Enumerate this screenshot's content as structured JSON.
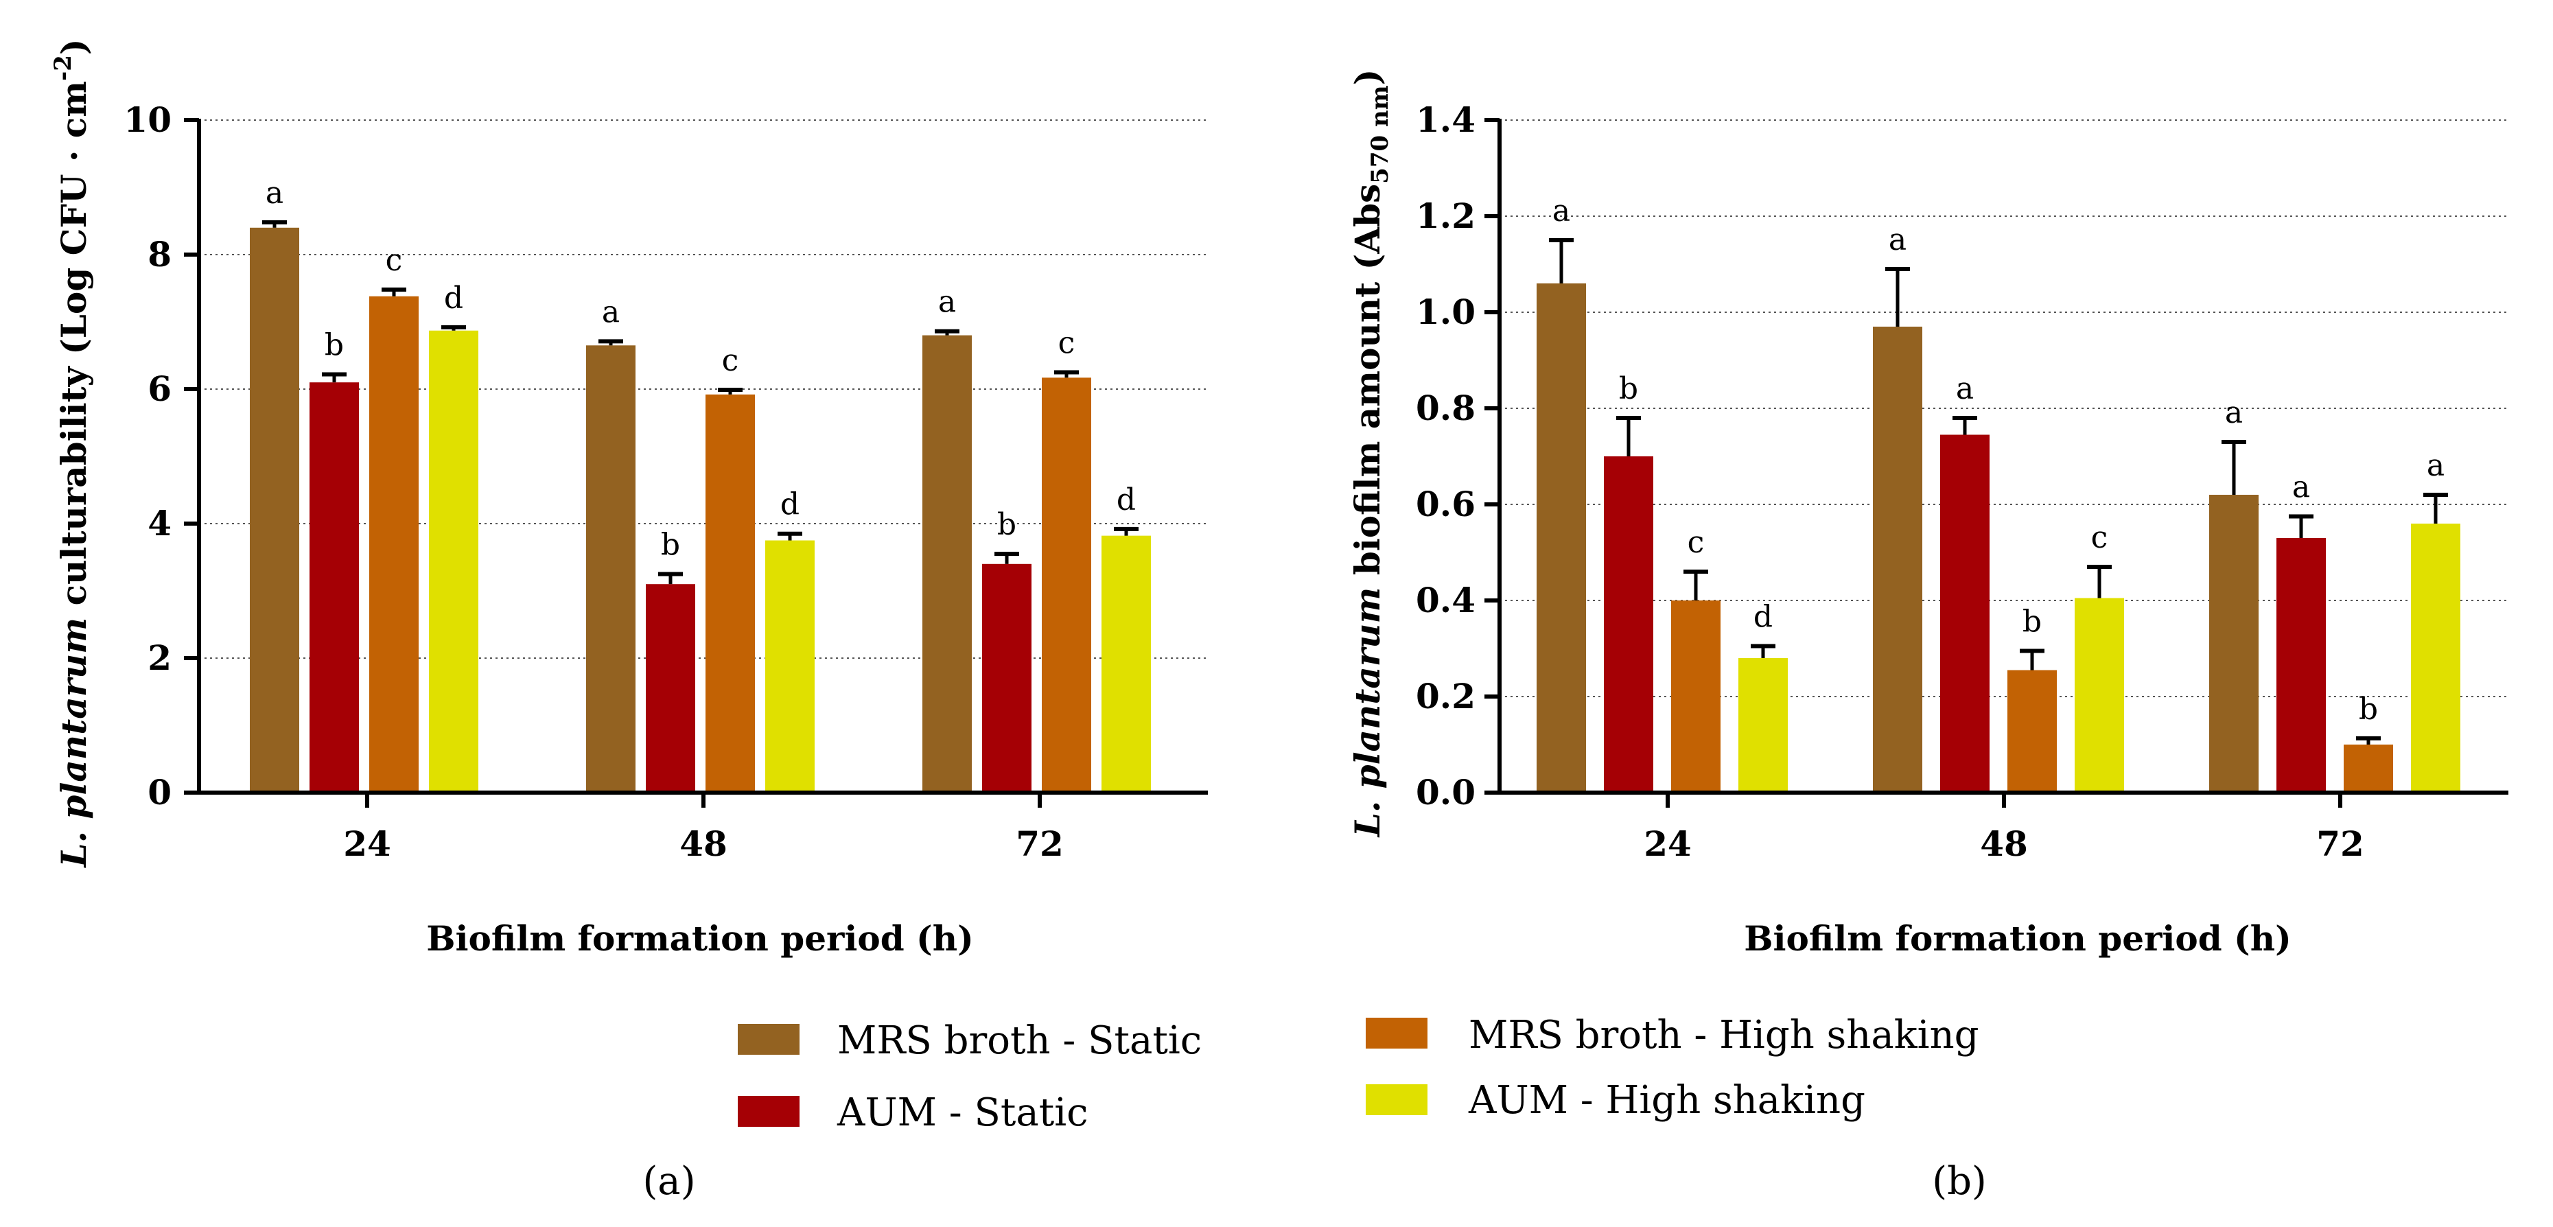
{
  "colors": {
    "mrs_static": "#936221",
    "aum_static": "#a50005",
    "mrs_shaking": "#c26204",
    "aum_shaking": "#e0e000",
    "axis": "#000000",
    "grid": "#555555"
  },
  "legend": {
    "items": [
      {
        "label": "MRS broth - Static",
        "color": "#936221"
      },
      {
        "label": "AUM - Static",
        "color": "#a50005"
      },
      {
        "label": "MRS broth - High shaking",
        "color": "#c26204"
      },
      {
        "label": "AUM - High shaking",
        "color": "#e0e000"
      }
    ]
  },
  "chart_data": [
    {
      "type": "bar",
      "panel_label": "(a)",
      "title": "",
      "xlabel": "Biofilm formation period (h)",
      "ylabel_italic": "L. plantarum",
      "ylabel_main": " culturability (Log CFU · cm",
      "ylabel_sup": "-2",
      "ylabel_close": ")",
      "categories": [
        "24",
        "48",
        "72"
      ],
      "ylim": [
        0,
        10
      ],
      "yticks": [
        "0",
        "2",
        "4",
        "6",
        "8",
        "10"
      ],
      "grid": true,
      "series": [
        {
          "name": "MRS broth - Static",
          "values": [
            8.4,
            6.65,
            6.8
          ],
          "errors": [
            0.08,
            0.06,
            0.06
          ],
          "labels": [
            "a",
            "a",
            "a"
          ]
        },
        {
          "name": "AUM - Static",
          "values": [
            6.1,
            3.1,
            3.4
          ],
          "errors": [
            0.12,
            0.15,
            0.15
          ],
          "labels": [
            "b",
            "b",
            "b"
          ]
        },
        {
          "name": "MRS broth - High shaking",
          "values": [
            7.38,
            5.92,
            6.17
          ],
          "errors": [
            0.1,
            0.07,
            0.08
          ],
          "labels": [
            "c",
            "c",
            "c"
          ]
        },
        {
          "name": "AUM - High shaking",
          "values": [
            6.87,
            3.75,
            3.82
          ],
          "errors": [
            0.05,
            0.1,
            0.1
          ],
          "labels": [
            "d",
            "d",
            "d"
          ]
        }
      ]
    },
    {
      "type": "bar",
      "panel_label": "(b)",
      "title": "",
      "xlabel": "Biofilm formation period (h)",
      "ylabel_italic": "L. plantarum",
      "ylabel_main": " biofilm amount (Abs",
      "ylabel_sub": "570 nm",
      "ylabel_close": ")",
      "categories": [
        "24",
        "48",
        "72"
      ],
      "ylim": [
        0,
        1.4
      ],
      "yticks": [
        "0.0",
        "0.2",
        "0.4",
        "0.6",
        "0.8",
        "1.0",
        "1.2",
        "1.4"
      ],
      "grid": true,
      "series": [
        {
          "name": "MRS broth - Static",
          "values": [
            1.06,
            0.97,
            0.62
          ],
          "errors": [
            0.09,
            0.12,
            0.11
          ],
          "labels": [
            "a",
            "a",
            "a"
          ]
        },
        {
          "name": "AUM - Static",
          "values": [
            0.7,
            0.745,
            0.53
          ],
          "errors": [
            0.08,
            0.035,
            0.045
          ],
          "labels": [
            "b",
            "a",
            "a"
          ]
        },
        {
          "name": "MRS broth - High shaking",
          "values": [
            0.4,
            0.255,
            0.1
          ],
          "errors": [
            0.06,
            0.04,
            0.013
          ],
          "labels": [
            "c",
            "b",
            "b"
          ]
        },
        {
          "name": "AUM - High shaking",
          "values": [
            0.28,
            0.405,
            0.56
          ],
          "errors": [
            0.025,
            0.065,
            0.06
          ],
          "labels": [
            "d",
            "c",
            "a"
          ]
        }
      ]
    }
  ]
}
